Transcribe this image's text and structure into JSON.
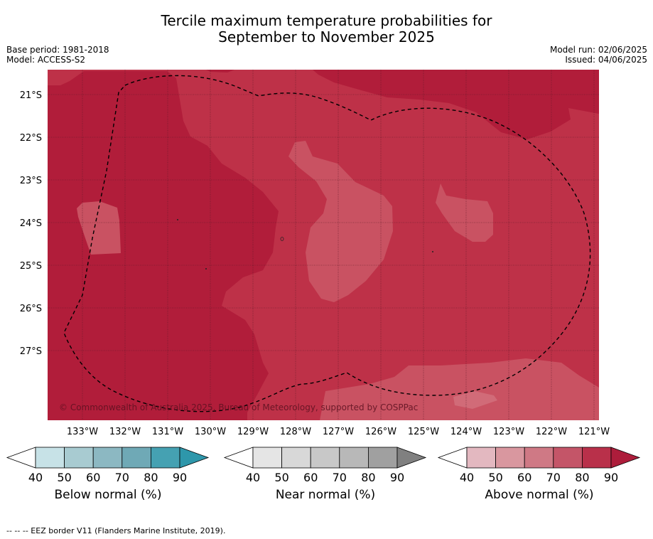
{
  "header": {
    "title_line1": "Tercile maximum temperature probabilities for",
    "title_line2": "September to November 2025",
    "base_period": "Base period: 1981-2018",
    "model": "Model: ACCESS-S2",
    "model_run": "Model run: 02/06/2025",
    "issued": "Issued: 04/06/2025"
  },
  "map": {
    "copyright": "© Commonwealth of Australia 2025, Bureau of Meteorology, supported by COSPPac",
    "lat_labels": [
      "21°S",
      "22°S",
      "23°S",
      "24°S",
      "25°S",
      "26°S",
      "27°S"
    ],
    "lon_labels": [
      "133°W",
      "132°W",
      "131°W",
      "130°W",
      "129°W",
      "128°W",
      "127°W",
      "126°W",
      "125°W",
      "124°W",
      "123°W",
      "122°W",
      "121°W"
    ]
  },
  "chart_data": {
    "type": "heatmap",
    "category": "Above normal",
    "lat_range": [
      -28.4,
      -20.4
    ],
    "lon_range": [
      -133.8,
      -120.9
    ],
    "levels": [
      {
        "name": "Above normal 80-90%",
        "color": "#b11d3a"
      },
      {
        "name": "Above normal 70-80%",
        "color": "#be3148"
      },
      {
        "name": "Above normal 60-70%",
        "color": "#c95262"
      }
    ],
    "eez_border": "dashed"
  },
  "colorbars": [
    {
      "label": "Below normal (%)",
      "ticks": [
        "40",
        "50",
        "60",
        "70",
        "80",
        "90"
      ],
      "colors": [
        "#c7e2e7",
        "#a8cbd1",
        "#8cb8c2",
        "#6fa9b6",
        "#45a1b2",
        "#2e97ab"
      ]
    },
    {
      "label": "Near normal (%)",
      "ticks": [
        "40",
        "50",
        "60",
        "70",
        "80",
        "90"
      ],
      "colors": [
        "#e5e5e5",
        "#d8d8d8",
        "#c8c8c8",
        "#b8b8b8",
        "#a0a0a0",
        "#808080"
      ]
    },
    {
      "label": "Above normal (%)",
      "ticks": [
        "40",
        "50",
        "60",
        "70",
        "80",
        "90"
      ],
      "colors": [
        "#e3b8c0",
        "#d9979f",
        "#cf7985",
        "#c45568",
        "#b9304a",
        "#ad1d3b"
      ]
    }
  ],
  "footer": {
    "eez_note": "--  --  -- EEZ border V11 (Flanders Marine Institute, 2019)."
  }
}
